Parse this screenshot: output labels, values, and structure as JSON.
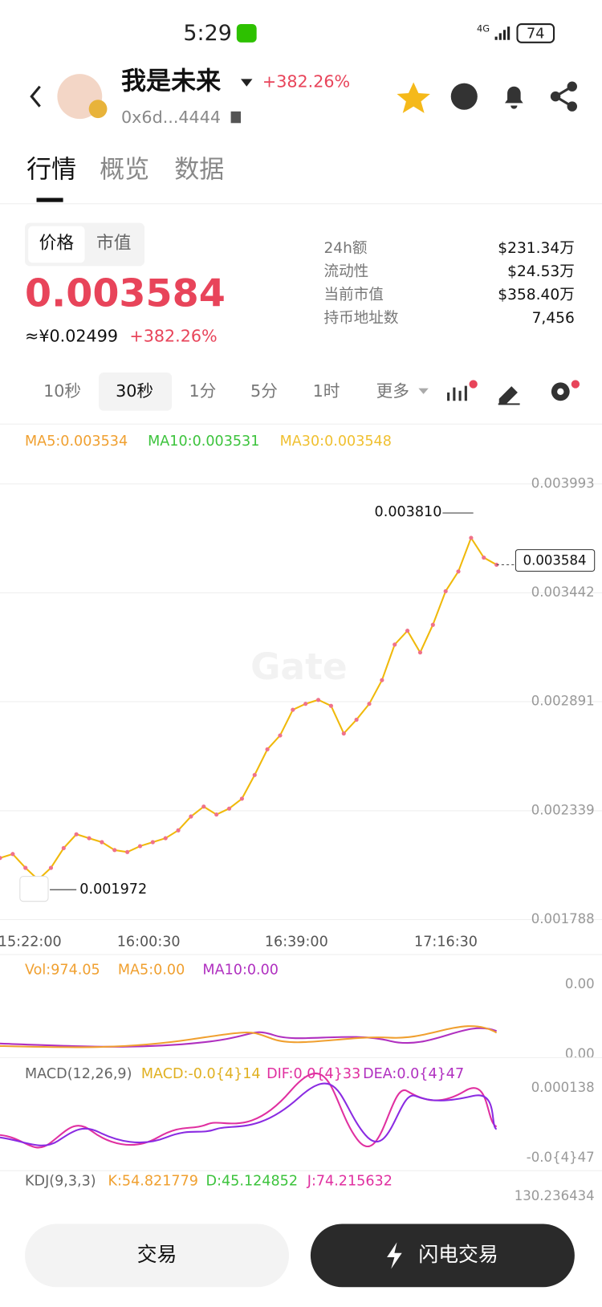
{
  "status_bar": {
    "time": "5:29",
    "network": "4G",
    "battery": "74"
  },
  "header": {
    "name": "我是未来",
    "change": "+382.26%",
    "address": "0x6d...4444"
  },
  "tabs": [
    "行情",
    "概览",
    "数据"
  ],
  "price_toggle": [
    "价格",
    "市值"
  ],
  "price": {
    "value": "0.003584",
    "cny": "≈¥0.02499",
    "change": "+382.26%"
  },
  "stats": [
    {
      "label": "24h额",
      "value": "$231.34万"
    },
    {
      "label": "流动性",
      "value": "$24.53万"
    },
    {
      "label": "当前市值",
      "value": "$358.40万"
    },
    {
      "label": "持币地址数",
      "value": "7,456"
    }
  ],
  "intervals": [
    "10秒",
    "30秒",
    "1分",
    "5分",
    "1时",
    "更多"
  ],
  "chart_data": {
    "type": "line",
    "legend": [
      "MA5:0.003534",
      "MA10:0.003531",
      "MA30:0.003548"
    ],
    "x_labels": [
      "15:22:00",
      "16:00:30",
      "16:39:00",
      "17:16:30"
    ],
    "values": [
      0.0021,
      0.00212,
      0.00205,
      0.00199,
      0.00205,
      0.00215,
      0.00222,
      0.0022,
      0.00218,
      0.00214,
      0.00213,
      0.00216,
      0.00218,
      0.0022,
      0.00224,
      0.00231,
      0.00236,
      0.00232,
      0.00235,
      0.0024,
      0.00252,
      0.00265,
      0.00272,
      0.00285,
      0.00288,
      0.0029,
      0.00287,
      0.00273,
      0.0028,
      0.00288,
      0.003,
      0.00318,
      0.00325,
      0.00314,
      0.00328,
      0.00345,
      0.00355,
      0.00372,
      0.00362,
      0.003584
    ],
    "color": "#f0b90b",
    "ylim": [
      0.001788,
      0.003993
    ],
    "yticks": [
      0.001788,
      0.002339,
      0.002891,
      0.003442,
      0.003993
    ],
    "grid": true,
    "high_label": "0.003810",
    "low_label": "0.001972",
    "last_label": "0.003584"
  },
  "volume": {
    "legend": [
      "Vol:974.05",
      "MA5:0.00",
      "MA10:0.00"
    ],
    "ticks": [
      "0.00",
      "0.00"
    ]
  },
  "macd": {
    "legend": [
      "MACD(12,26,9)",
      "MACD:-0.0{4}14",
      "DIF:0.0{4}33",
      "DEA:0.0{4}47"
    ],
    "ticks": [
      "0.000138",
      "-0.0{4}47"
    ]
  },
  "kdj": {
    "legend": [
      "KDJ(9,3,3)",
      "K:54.821779",
      "D:45.124852",
      "J:74.215632"
    ],
    "ticks": [
      "130.236434"
    ]
  },
  "footer": {
    "trade": "交易",
    "flash": "闪电交易"
  }
}
